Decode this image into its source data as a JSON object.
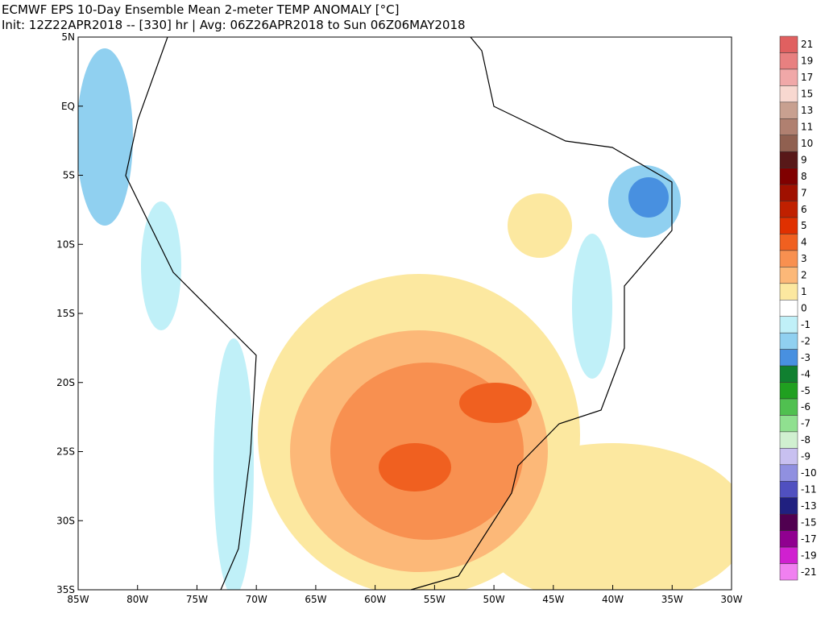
{
  "title": "ECMWF EPS 10-Day Ensemble Mean 2-meter TEMP ANOMALY [°C]",
  "subtitle": "Init: 12Z22APR2018 -- [330] hr | Avg: 06Z26APR2018 to Sun 06Z06MAY2018",
  "lat_labels": [
    "5N",
    "EQ",
    "5S",
    "10S",
    "15S",
    "20S",
    "25S",
    "30S",
    "35S"
  ],
  "lon_labels": [
    "85W",
    "80W",
    "75W",
    "70W",
    "65W",
    "60W",
    "55W",
    "50W",
    "45W",
    "40W",
    "35W",
    "30W"
  ],
  "colorbar": {
    "labels": [
      "21",
      "19",
      "17",
      "15",
      "13",
      "11",
      "10",
      "9",
      "8",
      "7",
      "6",
      "5",
      "4",
      "3",
      "2",
      "1",
      "0",
      "-1",
      "-2",
      "-3",
      "-4",
      "-5",
      "-6",
      "-7",
      "-8",
      "-9",
      "-10",
      "-11",
      "-13",
      "-15",
      "-17",
      "-19",
      "-21"
    ],
    "colors": [
      "#e06060",
      "#e88080",
      "#f0a8a8",
      "#f8d8d0",
      "#c8a090",
      "#b08070",
      "#906050",
      "#581818",
      "#800000",
      "#a01000",
      "#c02000",
      "#e03000",
      "#f06020",
      "#f89050",
      "#fcb878",
      "#fce8a0",
      "#ffffff",
      "#c0f0f8",
      "#90d0f0",
      "#4890e0",
      "#108030",
      "#20a020",
      "#50c050",
      "#90e090",
      "#d0f0d0",
      "#c8c0f0",
      "#9090e0",
      "#5050c0",
      "#202080",
      "#500050",
      "#900090",
      "#d020d0",
      "#f080f0"
    ]
  }
}
